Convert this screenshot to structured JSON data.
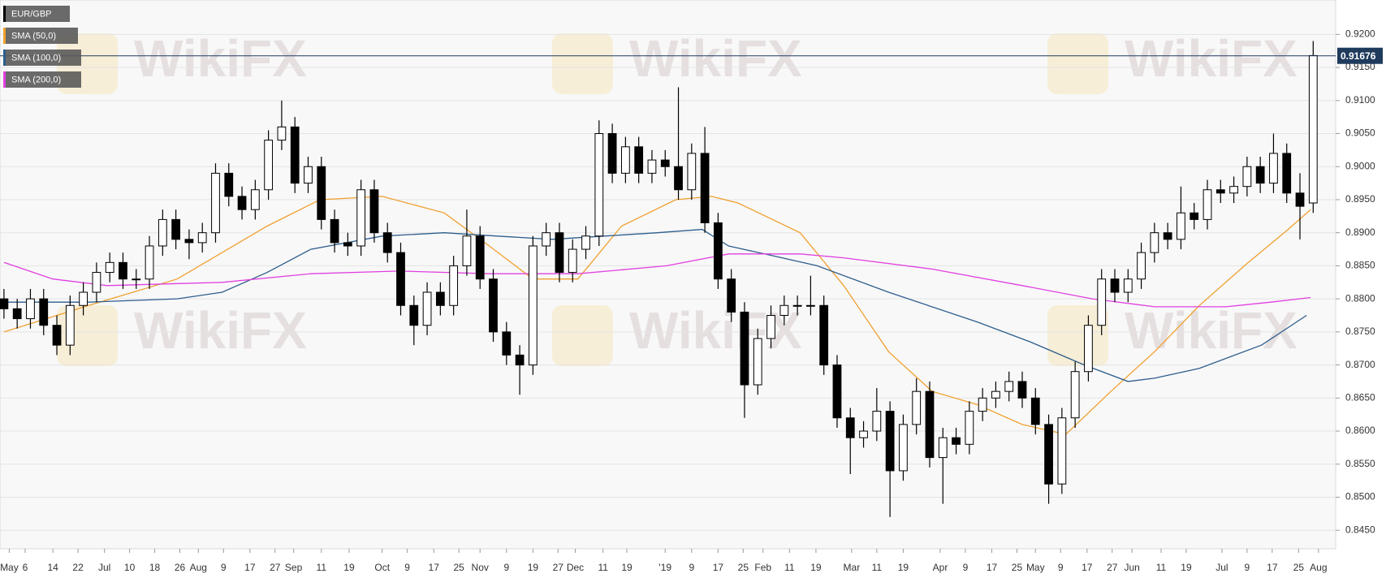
{
  "chart_data": {
    "type": "candlestick",
    "watermark": "WikiFX",
    "grid": true,
    "xlim": [
      -0.3,
      100.7
    ],
    "xticks": [
      {
        "value": 0.4,
        "label": "May"
      },
      {
        "value": 1.6,
        "label": "6"
      },
      {
        "value": 3.7,
        "label": "14"
      },
      {
        "value": 5.6,
        "label": "22"
      },
      {
        "value": 7.6,
        "label": "Jul"
      },
      {
        "value": 9.5,
        "label": "10"
      },
      {
        "value": 11.4,
        "label": "18"
      },
      {
        "value": 13.3,
        "label": "26"
      },
      {
        "value": 14.7,
        "label": "Aug"
      },
      {
        "value": 16.6,
        "label": "9"
      },
      {
        "value": 18.6,
        "label": "17"
      },
      {
        "value": 20.5,
        "label": "27"
      },
      {
        "value": 21.9,
        "label": "Sep"
      },
      {
        "value": 24.0,
        "label": "11"
      },
      {
        "value": 26.1,
        "label": "19"
      },
      {
        "value": 28.6,
        "label": "Oct"
      },
      {
        "value": 30.5,
        "label": "9"
      },
      {
        "value": 32.5,
        "label": "17"
      },
      {
        "value": 34.4,
        "label": "25"
      },
      {
        "value": 36.0,
        "label": "Nov"
      },
      {
        "value": 38.0,
        "label": "9"
      },
      {
        "value": 40.0,
        "label": "19"
      },
      {
        "value": 41.9,
        "label": "27"
      },
      {
        "value": 43.2,
        "label": "Dec"
      },
      {
        "value": 45.3,
        "label": "11"
      },
      {
        "value": 47.1,
        "label": "19"
      },
      {
        "value": 50.0,
        "label": "'19"
      },
      {
        "value": 52.0,
        "label": "9"
      },
      {
        "value": 54.0,
        "label": "17"
      },
      {
        "value": 55.9,
        "label": "25"
      },
      {
        "value": 57.4,
        "label": "Feb"
      },
      {
        "value": 59.4,
        "label": "11"
      },
      {
        "value": 61.4,
        "label": "19"
      },
      {
        "value": 64.1,
        "label": "Mar"
      },
      {
        "value": 66.0,
        "label": "11"
      },
      {
        "value": 68.0,
        "label": "19"
      },
      {
        "value": 70.8,
        "label": "Apr"
      },
      {
        "value": 72.7,
        "label": "9"
      },
      {
        "value": 74.7,
        "label": "17"
      },
      {
        "value": 76.6,
        "label": "25"
      },
      {
        "value": 78.0,
        "label": "May"
      },
      {
        "value": 79.9,
        "label": "9"
      },
      {
        "value": 81.9,
        "label": "17"
      },
      {
        "value": 83.8,
        "label": "27"
      },
      {
        "value": 85.3,
        "label": "Jun"
      },
      {
        "value": 87.5,
        "label": "11"
      },
      {
        "value": 89.4,
        "label": "19"
      },
      {
        "value": 92.1,
        "label": "Jul"
      },
      {
        "value": 94.0,
        "label": "9"
      },
      {
        "value": 95.9,
        "label": "17"
      },
      {
        "value": 97.9,
        "label": "25"
      },
      {
        "value": 99.4,
        "label": "Aug"
      }
    ],
    "ylim": [
      0.8422,
      0.9252
    ],
    "yticks": [
      {
        "value": 0.845,
        "label": "0.8450"
      },
      {
        "value": 0.85,
        "label": "0.8500"
      },
      {
        "value": 0.855,
        "label": "0.8550"
      },
      {
        "value": 0.86,
        "label": "0.8600"
      },
      {
        "value": 0.865,
        "label": "0.8650"
      },
      {
        "value": 0.87,
        "label": "0.8700"
      },
      {
        "value": 0.875,
        "label": "0.8750"
      },
      {
        "value": 0.88,
        "label": "0.8800"
      },
      {
        "value": 0.885,
        "label": "0.8850"
      },
      {
        "value": 0.89,
        "label": "0.8900"
      },
      {
        "value": 0.895,
        "label": "0.8950"
      },
      {
        "value": 0.9,
        "label": "0.9000"
      },
      {
        "value": 0.905,
        "label": "0.9050"
      },
      {
        "value": 0.91,
        "label": "0.9100"
      },
      {
        "value": 0.915,
        "label": "0.9150"
      },
      {
        "value": 0.92,
        "label": "0.9200"
      }
    ],
    "last_price": 0.91676,
    "last_price_color": "#1f3b5c",
    "series": [
      {
        "name": "EUR/GBP",
        "type": "candlestick",
        "color": "#000000",
        "up_color": "#ffffff",
        "down_color": "#000000",
        "open": [
          0.88,
          0.8785,
          0.877,
          0.88,
          0.876,
          0.873,
          0.879,
          0.881,
          0.884,
          0.8855,
          0.883,
          0.883,
          0.888,
          0.892,
          0.889,
          0.8885,
          0.89,
          0.899,
          0.8955,
          0.8935,
          0.8965,
          0.904,
          0.906,
          0.8975,
          0.9,
          0.892,
          0.8885,
          0.888,
          0.8965,
          0.89,
          0.887,
          0.879,
          0.876,
          0.881,
          0.879,
          0.885,
          0.8895,
          0.883,
          0.875,
          0.8715,
          0.87,
          0.888,
          0.89,
          0.884,
          0.8875,
          0.8895,
          0.905,
          0.899,
          0.903,
          0.899,
          0.901,
          0.9,
          0.8965,
          0.902,
          0.8915,
          0.883,
          0.878,
          0.867,
          0.874,
          0.8775,
          0.879,
          0.879,
          0.879,
          0.87,
          0.862,
          0.859,
          0.86,
          0.863,
          0.854,
          0.861,
          0.866,
          0.856,
          0.859,
          0.858,
          0.863,
          0.865,
          0.866,
          0.8675,
          0.865,
          0.861,
          0.852,
          0.862,
          0.869,
          0.876,
          0.883,
          0.881,
          0.883,
          0.887,
          0.89,
          0.889,
          0.893,
          0.892,
          0.8965,
          0.896,
          0.897,
          0.9,
          0.8975,
          0.902,
          0.896,
          0.8945
        ],
        "high": [
          0.8815,
          0.88,
          0.8815,
          0.8815,
          0.8775,
          0.8805,
          0.8825,
          0.8855,
          0.887,
          0.887,
          0.8845,
          0.8895,
          0.8935,
          0.8935,
          0.8905,
          0.8915,
          0.9005,
          0.9005,
          0.897,
          0.898,
          0.9055,
          0.91,
          0.9075,
          0.9015,
          0.9015,
          0.8935,
          0.89,
          0.898,
          0.898,
          0.8915,
          0.8885,
          0.8805,
          0.8825,
          0.8825,
          0.8865,
          0.8935,
          0.891,
          0.8845,
          0.8765,
          0.873,
          0.8895,
          0.8915,
          0.8915,
          0.889,
          0.891,
          0.907,
          0.9065,
          0.9045,
          0.9045,
          0.9025,
          0.9025,
          0.912,
          0.9035,
          0.906,
          0.893,
          0.8845,
          0.8795,
          0.8755,
          0.879,
          0.8805,
          0.8805,
          0.8835,
          0.8805,
          0.8715,
          0.8635,
          0.8615,
          0.8665,
          0.8645,
          0.8625,
          0.868,
          0.8675,
          0.8605,
          0.8605,
          0.8645,
          0.8665,
          0.8675,
          0.869,
          0.869,
          0.8665,
          0.8625,
          0.8635,
          0.8705,
          0.8775,
          0.8845,
          0.8845,
          0.8845,
          0.8885,
          0.8915,
          0.8915,
          0.897,
          0.8945,
          0.898,
          0.898,
          0.8985,
          0.9015,
          0.9015,
          0.905,
          0.9035,
          0.899,
          0.919
        ],
        "low": [
          0.877,
          0.8755,
          0.8755,
          0.8745,
          0.8715,
          0.8715,
          0.8775,
          0.8795,
          0.8825,
          0.8815,
          0.8815,
          0.8815,
          0.8865,
          0.8875,
          0.886,
          0.887,
          0.8885,
          0.894,
          0.892,
          0.892,
          0.895,
          0.9025,
          0.896,
          0.896,
          0.8905,
          0.887,
          0.8865,
          0.8865,
          0.8885,
          0.8855,
          0.8775,
          0.873,
          0.8745,
          0.8775,
          0.8775,
          0.8835,
          0.8815,
          0.8735,
          0.87,
          0.8655,
          0.8685,
          0.8865,
          0.8825,
          0.8825,
          0.886,
          0.888,
          0.8975,
          0.8975,
          0.8975,
          0.8975,
          0.8985,
          0.895,
          0.895,
          0.89,
          0.8815,
          0.8765,
          0.862,
          0.8655,
          0.8725,
          0.876,
          0.8775,
          0.8775,
          0.8685,
          0.8605,
          0.8535,
          0.8575,
          0.8585,
          0.847,
          0.8525,
          0.8595,
          0.8545,
          0.849,
          0.8565,
          0.8565,
          0.8615,
          0.8635,
          0.8645,
          0.8635,
          0.8595,
          0.849,
          0.8505,
          0.8605,
          0.8675,
          0.8745,
          0.8795,
          0.8795,
          0.8815,
          0.8855,
          0.8875,
          0.8875,
          0.8905,
          0.8905,
          0.8945,
          0.8945,
          0.8955,
          0.896,
          0.896,
          0.8945,
          0.889,
          0.893
        ],
        "close": [
          0.8785,
          0.877,
          0.88,
          0.876,
          0.873,
          0.879,
          0.881,
          0.884,
          0.8855,
          0.883,
          0.883,
          0.888,
          0.892,
          0.889,
          0.8885,
          0.89,
          0.899,
          0.8955,
          0.8935,
          0.8965,
          0.904,
          0.906,
          0.8975,
          0.9,
          0.892,
          0.8885,
          0.888,
          0.8965,
          0.89,
          0.887,
          0.879,
          0.876,
          0.881,
          0.879,
          0.885,
          0.8895,
          0.883,
          0.875,
          0.8715,
          0.87,
          0.888,
          0.89,
          0.884,
          0.8875,
          0.8895,
          0.905,
          0.899,
          0.903,
          0.899,
          0.901,
          0.9,
          0.8965,
          0.902,
          0.8915,
          0.883,
          0.878,
          0.867,
          0.874,
          0.8775,
          0.879,
          0.879,
          0.879,
          0.87,
          0.862,
          0.859,
          0.86,
          0.863,
          0.854,
          0.861,
          0.866,
          0.856,
          0.859,
          0.858,
          0.863,
          0.865,
          0.866,
          0.8675,
          0.865,
          0.861,
          0.852,
          0.862,
          0.869,
          0.876,
          0.883,
          0.881,
          0.883,
          0.887,
          0.89,
          0.889,
          0.893,
          0.892,
          0.8965,
          0.896,
          0.897,
          0.9,
          0.8975,
          0.902,
          0.896,
          0.894,
          0.9168
        ]
      },
      {
        "name": "SMA (50,0)",
        "type": "line",
        "color": "#f0a030",
        "x": [
          0,
          6.4,
          13.1,
          19.9,
          23.9,
          28.6,
          33.3,
          36.7,
          40.0,
          43.4,
          46.7,
          50.8,
          53.5,
          55.5,
          60.2,
          63.5,
          66.9,
          70.2,
          73.6,
          77.0,
          80.3,
          83.7,
          87.0,
          90.4,
          93.8,
          97.1,
          98.8
        ],
        "values": [
          0.875,
          0.879,
          0.883,
          0.891,
          0.895,
          0.8955,
          0.893,
          0.888,
          0.883,
          0.883,
          0.891,
          0.895,
          0.8955,
          0.8945,
          0.89,
          0.882,
          0.872,
          0.866,
          0.864,
          0.861,
          0.8595,
          0.866,
          0.872,
          0.879,
          0.885,
          0.8905,
          0.8935
        ]
      },
      {
        "name": "SMA (100,0)",
        "type": "line",
        "color": "#2d5d8c",
        "x": [
          0,
          6.4,
          13.1,
          16.5,
          19.9,
          23.2,
          28.6,
          33.3,
          37.3,
          41.4,
          45.4,
          49.4,
          52.8,
          54.8,
          58.2,
          61.5,
          66.9,
          73.6,
          77.6,
          81.7,
          85.0,
          87.0,
          90.4,
          95.1,
          98.5
        ],
        "values": [
          0.8795,
          0.8795,
          0.88,
          0.881,
          0.884,
          0.8875,
          0.8895,
          0.89,
          0.8895,
          0.889,
          0.8895,
          0.89,
          0.8905,
          0.888,
          0.8865,
          0.885,
          0.881,
          0.8765,
          0.8735,
          0.87,
          0.8675,
          0.868,
          0.8695,
          0.873,
          0.8775
        ]
      },
      {
        "name": "SMA (200,0)",
        "type": "line",
        "color": "#e040e0",
        "x": [
          0,
          3.7,
          7.8,
          16.5,
          23.2,
          29.9,
          36.7,
          43.4,
          50.1,
          54.8,
          60.2,
          63.5,
          70.2,
          77.0,
          82.3,
          87.0,
          92.4,
          95.8,
          98.8
        ],
        "values": [
          0.8855,
          0.883,
          0.882,
          0.8825,
          0.8838,
          0.8842,
          0.8838,
          0.8838,
          0.885,
          0.8868,
          0.8868,
          0.8862,
          0.8845,
          0.882,
          0.88,
          0.8788,
          0.8788,
          0.8795,
          0.8802
        ]
      }
    ]
  }
}
